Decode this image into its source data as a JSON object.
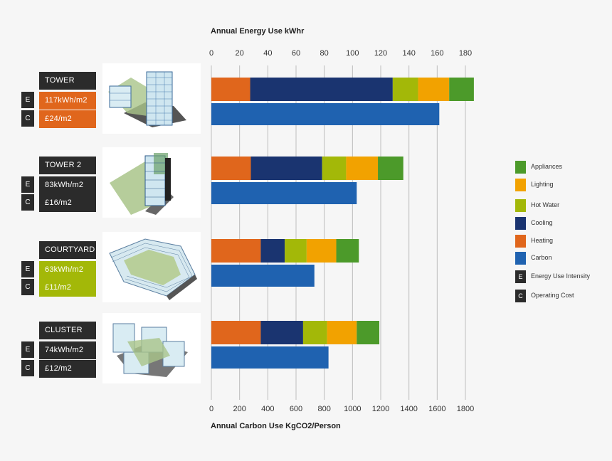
{
  "colors": {
    "appliances": "#4c9a2a",
    "lighting": "#f2a200",
    "hot_water": "#a3b808",
    "cooling": "#1a3470",
    "heating": "#e0661c",
    "carbon": "#1f62b0",
    "label_dark": "#2b2b2b"
  },
  "buildings": [
    {
      "name": "TOWER",
      "eui": "117kWh/m2",
      "cost": "£24/m2",
      "badge_color": "#e0661c",
      "badge_letter_e": "E",
      "badge_letter_c": "C"
    },
    {
      "name": "TOWER 2",
      "eui": "83kWh/m2",
      "cost": "£16/m2",
      "badge_color": "#2b2b2b",
      "badge_letter_e": "E",
      "badge_letter_c": "C"
    },
    {
      "name": "COURTYARD",
      "eui": "63kWh/m2",
      "cost": "£11/m2",
      "badge_color": "#a3b808",
      "badge_letter_e": "E",
      "badge_letter_c": "C"
    },
    {
      "name": "CLUSTER",
      "eui": "74kWh/m2",
      "cost": "£12/m2",
      "badge_color": "#2b2b2b",
      "badge_letter_e": "E",
      "badge_letter_c": "C"
    }
  ],
  "legend": [
    {
      "label": "Appliances",
      "color": "#4c9a2a"
    },
    {
      "label": "Lighting",
      "color": "#f2a200"
    },
    {
      "label": "Hot Water",
      "color": "#a3b808"
    },
    {
      "label": "Cooling",
      "color": "#1a3470"
    },
    {
      "label": "Heating",
      "color": "#e0661c"
    },
    {
      "label": "Carbon",
      "color": "#1f62b0"
    },
    {
      "label": "Energy Use Intensity",
      "letter": "E"
    },
    {
      "label": "Operating Cost",
      "letter": "C"
    }
  ],
  "chart_data": {
    "type": "bar",
    "orientation": "horizontal",
    "stacked": true,
    "categories": [
      "TOWER",
      "TOWER 2",
      "COURTYARD",
      "CLUSTER"
    ],
    "top_axis": {
      "label": "Annual Energy Use kWhr",
      "range": [
        0,
        180
      ],
      "ticks": [
        "0",
        "20",
        "40",
        "60",
        "80",
        "100",
        "120",
        "140",
        "160",
        "180"
      ]
    },
    "bottom_axis": {
      "label": "Annual Carbon Use KgCO2/Person",
      "range": [
        0,
        1800
      ],
      "ticks": [
        "0",
        "200",
        "400",
        "600",
        "800",
        "1000",
        "1200",
        "1400",
        "1600",
        "1800"
      ]
    },
    "energy_series": [
      {
        "name": "Heating",
        "values": [
          27.5,
          28,
          35,
          35
        ]
      },
      {
        "name": "Cooling",
        "values": [
          101,
          50.5,
          17,
          30
        ]
      },
      {
        "name": "Hot Water",
        "values": [
          18,
          17,
          15.5,
          17
        ]
      },
      {
        "name": "Lighting",
        "values": [
          22,
          22.5,
          21,
          21
        ]
      },
      {
        "name": "Appliances",
        "values": [
          17.5,
          18,
          16,
          16
        ]
      }
    ],
    "carbon_series": [
      {
        "name": "Carbon",
        "values": [
          1615,
          1030,
          730,
          830
        ]
      }
    ],
    "grid": true,
    "legend_position": "right"
  }
}
